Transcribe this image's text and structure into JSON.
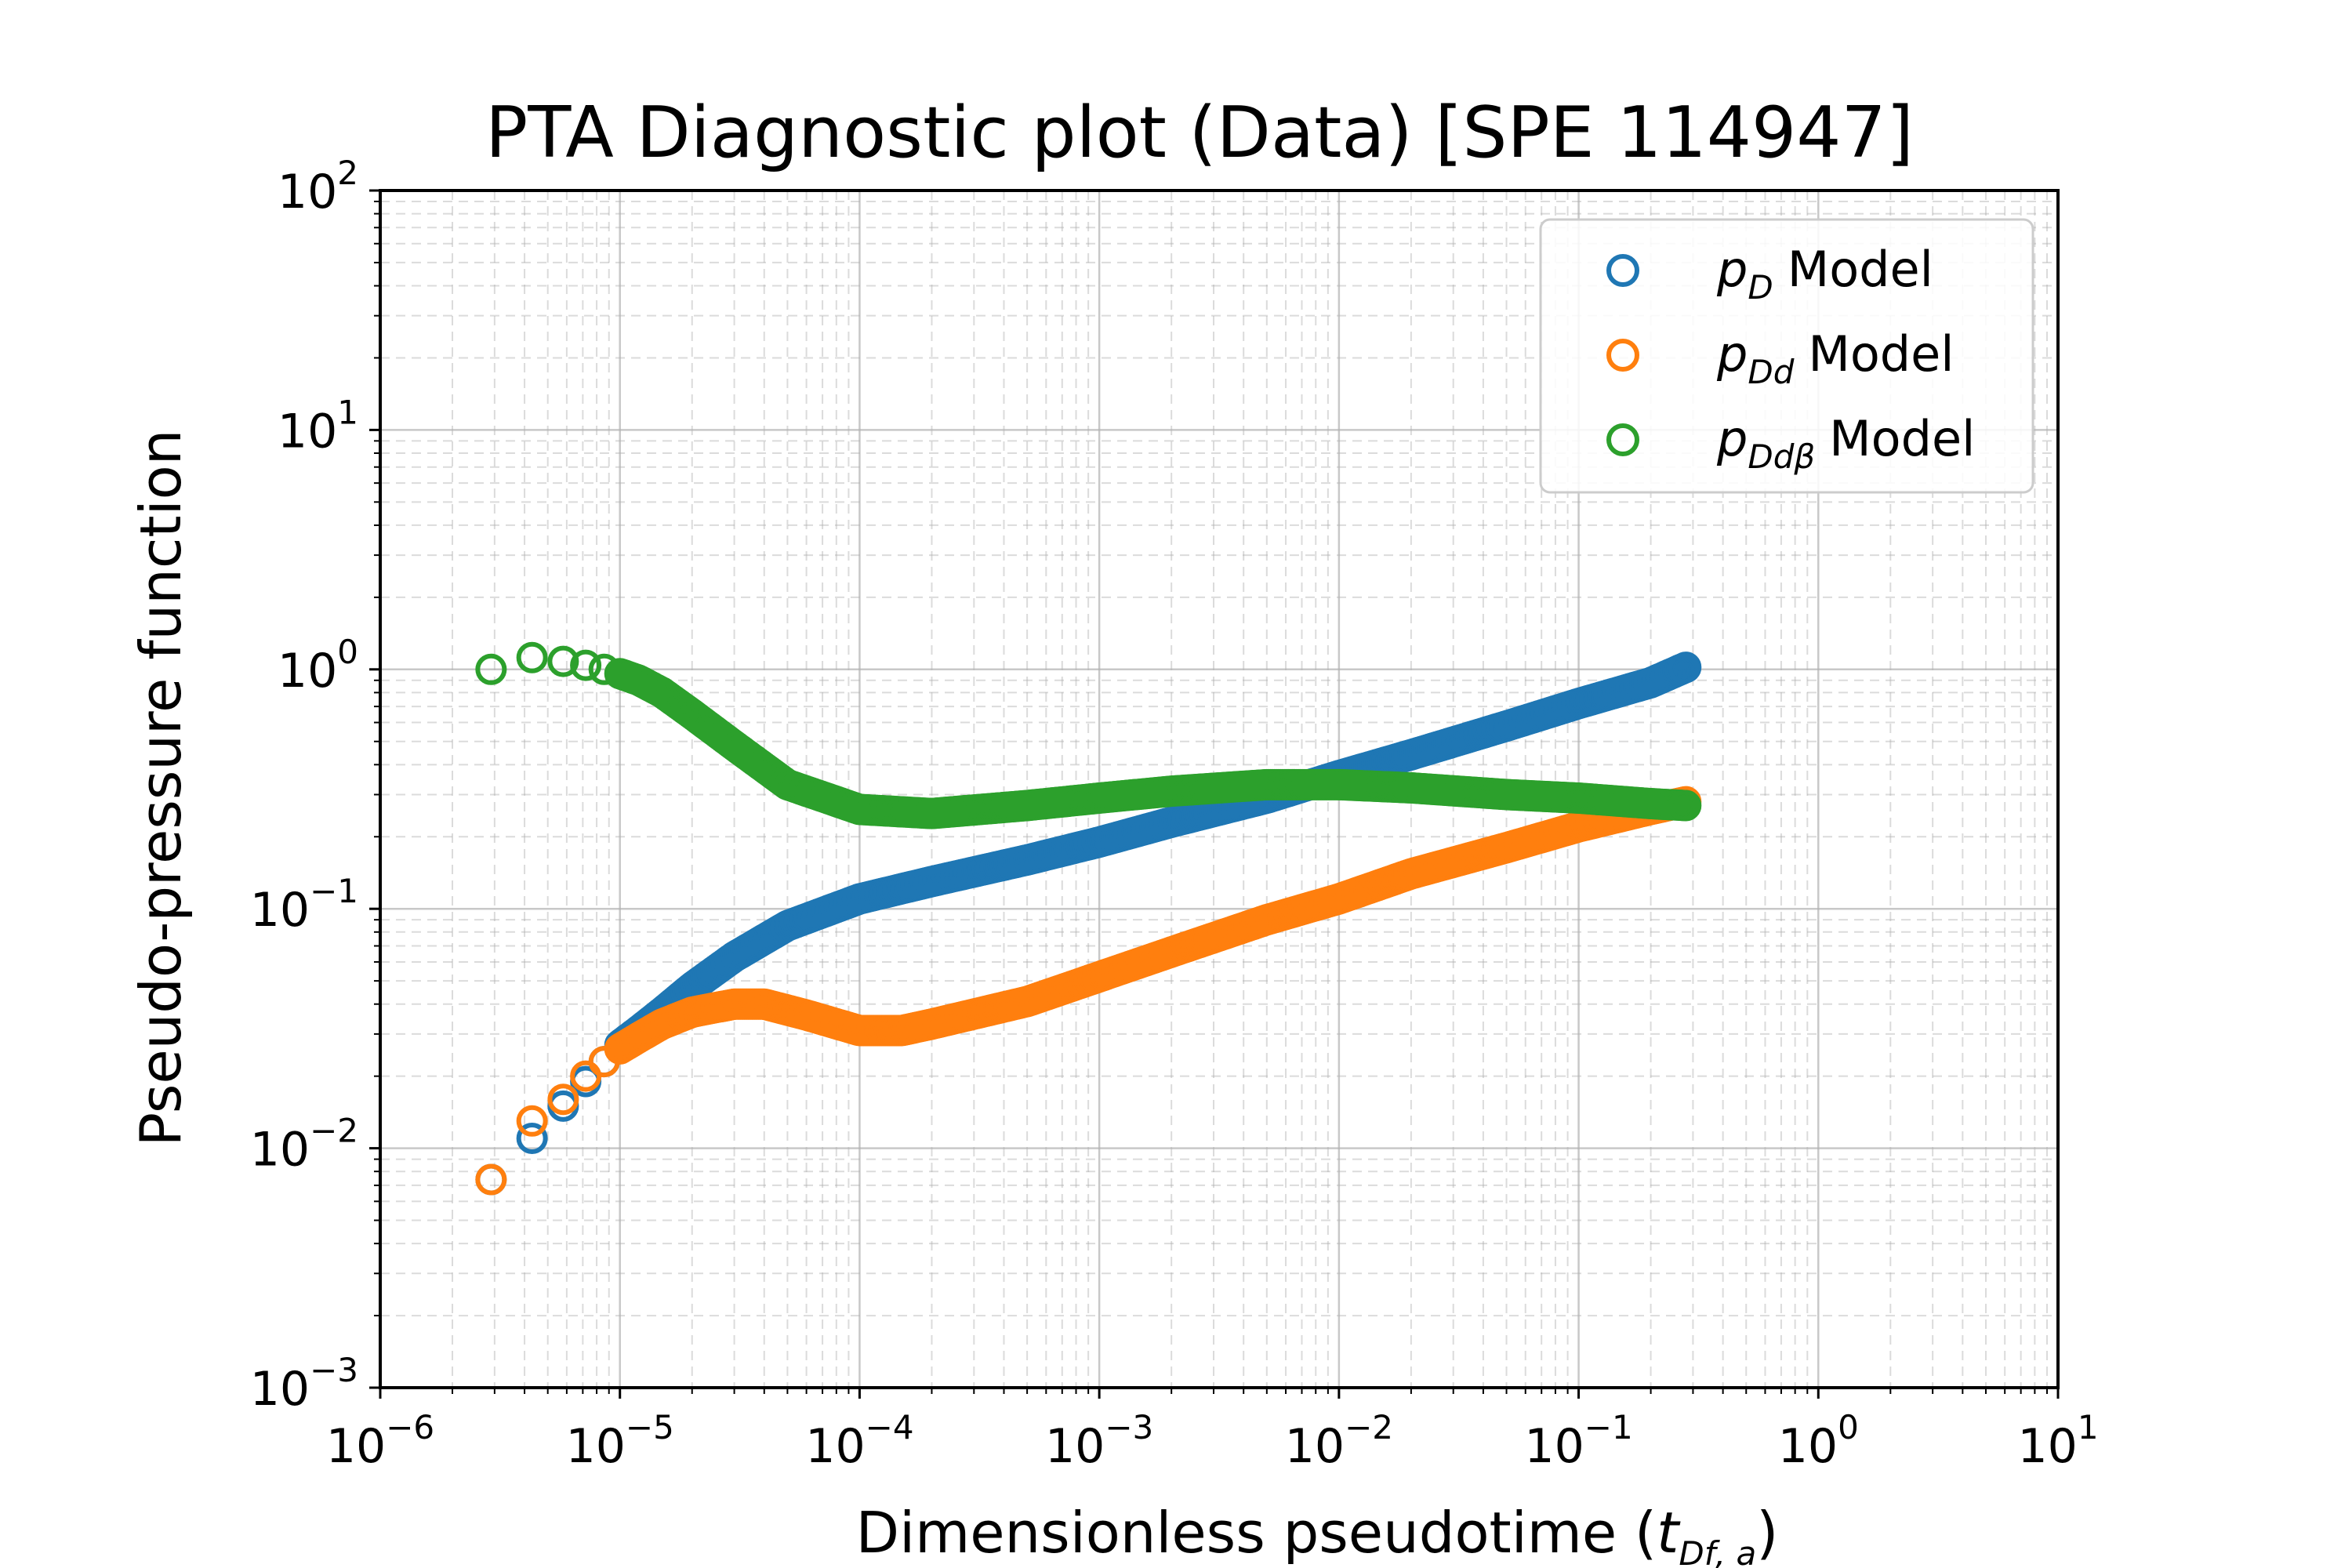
{
  "chart_data": {
    "type": "scatter",
    "title": "PTA Diagnostic plot (Data) [SPE 114947]",
    "xlabel": "Dimensionless pseudotime",
    "xlabel_symbol": "t",
    "xlabel_subscript": "Df, a",
    "ylabel": "Pseudo-pressure function",
    "xscale": "log",
    "yscale": "log",
    "xlim": [
      1e-06,
      10
    ],
    "ylim": [
      0.001,
      100
    ],
    "grid": "major and minor",
    "legend_position": "top-right",
    "x_tick_labels": [
      {
        "base": "10",
        "exp": "−6"
      },
      {
        "base": "10",
        "exp": "−5"
      },
      {
        "base": "10",
        "exp": "−4"
      },
      {
        "base": "10",
        "exp": "−3"
      },
      {
        "base": "10",
        "exp": "−2"
      },
      {
        "base": "10",
        "exp": "−1"
      },
      {
        "base": "10",
        "exp": "0"
      },
      {
        "base": "10",
        "exp": "1"
      }
    ],
    "y_tick_labels": [
      {
        "base": "10",
        "exp": "−3"
      },
      {
        "base": "10",
        "exp": "−2"
      },
      {
        "base": "10",
        "exp": "−1"
      },
      {
        "base": "10",
        "exp": "0"
      },
      {
        "base": "10",
        "exp": "1"
      },
      {
        "base": "10",
        "exp": "2"
      }
    ],
    "series": [
      {
        "name": "Model",
        "symbol": "p",
        "subscript": "D",
        "color": "#1f77b4",
        "x": [
          2.9e-06,
          4.3e-06,
          5.8e-06,
          7.2e-06,
          8.6e-06,
          1e-05,
          1.2e-05,
          1.5e-05,
          2e-05,
          3e-05,
          5e-05,
          0.0001,
          0.0002,
          0.0005,
          0.001,
          0.002,
          0.005,
          0.01,
          0.02,
          0.05,
          0.1,
          0.2,
          0.28
        ],
        "y": [
          0.0074,
          0.011,
          0.015,
          0.019,
          0.023,
          0.027,
          0.031,
          0.037,
          0.047,
          0.063,
          0.085,
          0.11,
          0.13,
          0.16,
          0.19,
          0.23,
          0.29,
          0.36,
          0.44,
          0.58,
          0.72,
          0.88,
          1.02
        ]
      },
      {
        "name": "Model",
        "symbol": "p",
        "subscript": "Dd",
        "color": "#ff7f0e",
        "x": [
          2.9e-06,
          4.3e-06,
          5.8e-06,
          7.2e-06,
          8.6e-06,
          1e-05,
          1.2e-05,
          1.5e-05,
          2e-05,
          3e-05,
          4e-05,
          6e-05,
          0.0001,
          0.00015,
          0.0002,
          0.0005,
          0.001,
          0.002,
          0.005,
          0.01,
          0.02,
          0.05,
          0.1,
          0.2,
          0.28
        ],
        "y": [
          0.0074,
          0.013,
          0.016,
          0.02,
          0.023,
          0.026,
          0.029,
          0.033,
          0.037,
          0.04,
          0.04,
          0.036,
          0.031,
          0.031,
          0.033,
          0.041,
          0.052,
          0.066,
          0.09,
          0.11,
          0.14,
          0.18,
          0.22,
          0.26,
          0.28
        ]
      },
      {
        "name": "Model",
        "symbol": "p",
        "subscript": "Ddβ",
        "color": "#2ca02c",
        "x": [
          2.9e-06,
          4.3e-06,
          5.8e-06,
          7.2e-06,
          8.6e-06,
          1e-05,
          1.2e-05,
          1.5e-05,
          2e-05,
          3e-05,
          5e-05,
          0.0001,
          0.0002,
          0.0005,
          0.001,
          0.002,
          0.005,
          0.01,
          0.02,
          0.05,
          0.1,
          0.2,
          0.28
        ],
        "y": [
          1.0,
          1.12,
          1.08,
          1.04,
          1.0,
          0.96,
          0.9,
          0.8,
          0.65,
          0.48,
          0.33,
          0.26,
          0.25,
          0.27,
          0.29,
          0.31,
          0.33,
          0.33,
          0.32,
          0.3,
          0.29,
          0.275,
          0.27
        ]
      }
    ]
  }
}
